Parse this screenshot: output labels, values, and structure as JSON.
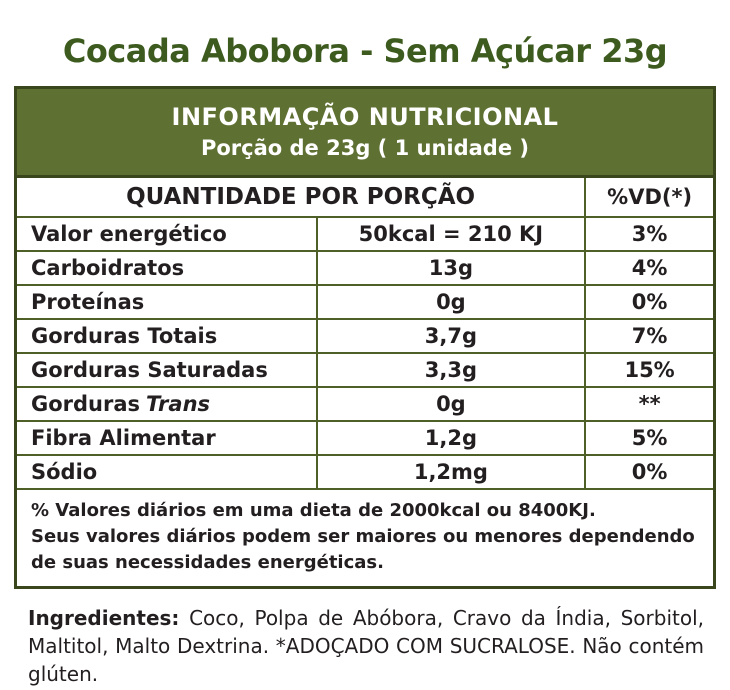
{
  "page_title": "Cocada Abobora - Sem Açúcar 23g",
  "colors": {
    "title_green": "#3d5b1f",
    "band_olive": "#5f7033",
    "border_dark": "#3a461b",
    "border_inner": "#4f5f28",
    "text": "#231f20",
    "band_text": "#ffffff"
  },
  "nutrition_table": {
    "band_line1": "INFORMAÇÃO NUTRICIONAL",
    "band_line2": "Porção de 23g ( 1 unidade )",
    "quantity_header": "QUANTIDADE POR PORÇÃO",
    "dv_header": "%VD(*)",
    "rows": [
      {
        "label": "Valor energético",
        "value": "50kcal = 210 KJ",
        "dv": "3%"
      },
      {
        "label": "Carboidratos",
        "value": "13g",
        "dv": "4%"
      },
      {
        "label": "Proteínas",
        "value": "0g",
        "dv": "0%"
      },
      {
        "label": "Gorduras Totais",
        "value": "3,7g",
        "dv": "7%"
      },
      {
        "label": "Gorduras Saturadas",
        "value": "3,3g",
        "dv": "15%"
      },
      {
        "label": "Gorduras",
        "label_italic": "Trans",
        "value": "0g",
        "dv": "**"
      },
      {
        "label": "Fibra Alimentar",
        "value": "1,2g",
        "dv": "5%"
      },
      {
        "label": "Sódio",
        "value": "1,2mg",
        "dv": "0%"
      }
    ],
    "footnote_lines": [
      "% Valores diários em uma dieta de 2000kcal ou 8400KJ.",
      "Seus valores diários podem ser maiores ou menores dependendo",
      "de suas necessidades energéticas."
    ]
  },
  "ingredients": {
    "label": "Ingredientes:",
    "text": "Coco, Polpa de Abóbora, Cravo da Índia, Sorbitol, Maltitol, Malto Dextrina. *ADOÇADO COM SUCRALOSE. Não contém glúten."
  }
}
